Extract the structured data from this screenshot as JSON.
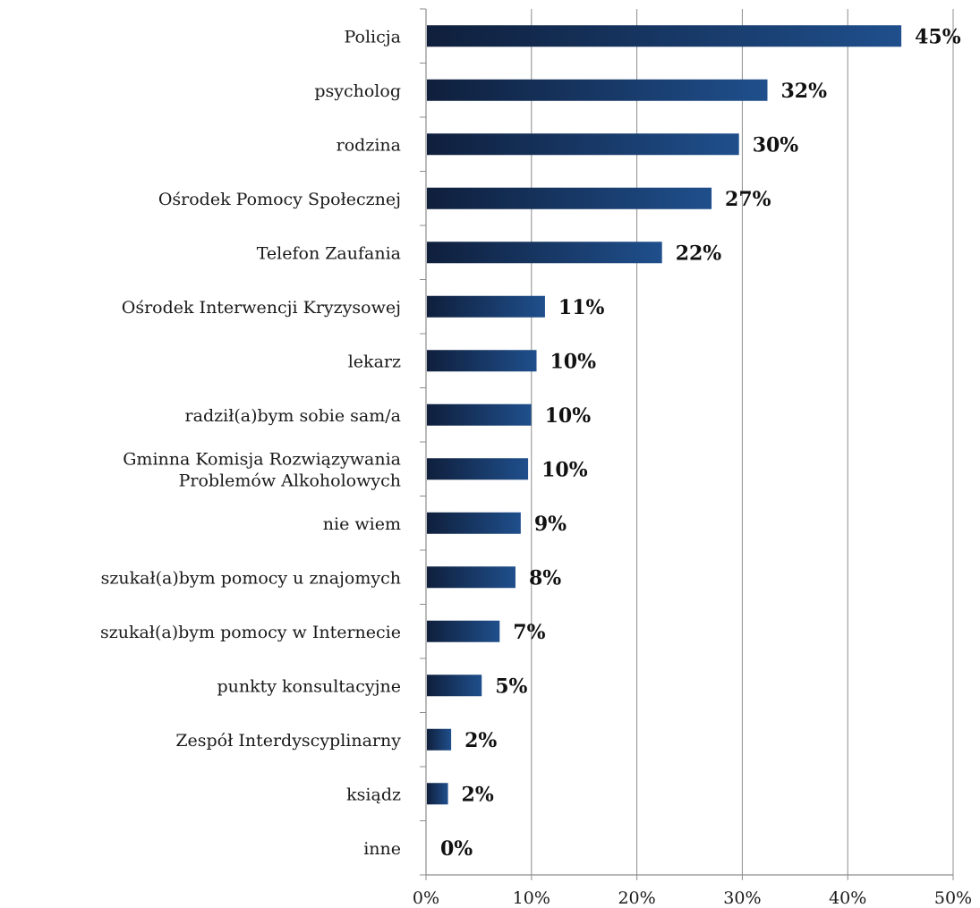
{
  "chart_data": {
    "type": "bar",
    "orientation": "horizontal",
    "categories": [
      "Policja",
      "psycholog",
      "rodzina",
      "Ośrodek Pomocy Społecznej",
      "Telefon Zaufania",
      "Ośrodek Interwencji Kryzysowej",
      "lekarz",
      "radził(a)bym sobie sam/a",
      "Gminna Komisja Rozwiązywania Problemów Alkoholowych",
      "nie wiem",
      "szukał(a)bym pomocy u znajomych",
      "szukał(a)bym pomocy w Internecie",
      "punkty konsultacyjne",
      "Zespół Interdyscyplinarny",
      "ksiądz",
      "inne"
    ],
    "category_lines": [
      [
        "Policja"
      ],
      [
        "psycholog"
      ],
      [
        "rodzina"
      ],
      [
        "Ośrodek Pomocy Społecznej"
      ],
      [
        "Telefon Zaufania"
      ],
      [
        "Ośrodek Interwencji Kryzysowej"
      ],
      [
        "lekarz"
      ],
      [
        "radził(a)bym sobie sam/a"
      ],
      [
        "Gminna Komisja Rozwiązywania",
        "Problemów Alkoholowych"
      ],
      [
        "nie wiem"
      ],
      [
        "szukał(a)bym pomocy u znajomych"
      ],
      [
        "szukał(a)bym pomocy w Internecie"
      ],
      [
        "punkty konsultacyjne"
      ],
      [
        "Zespół Interdyscyplinarny"
      ],
      [
        "ksiądz"
      ],
      [
        "inne"
      ]
    ],
    "values": [
      45,
      32.3,
      29.6,
      27,
      22.3,
      11.2,
      10.4,
      9.9,
      9.6,
      8.9,
      8.4,
      6.9,
      5.2,
      2.3,
      2.0,
      0
    ],
    "data_labels": [
      "45%",
      "32%",
      "30%",
      "27%",
      "22%",
      "11%",
      "10%",
      "10%",
      "10%",
      "9%",
      "8%",
      "7%",
      "5%",
      "2%",
      "2%",
      "0%"
    ],
    "xlim": [
      0,
      50
    ],
    "x_ticks": [
      0,
      10,
      20,
      30,
      40,
      50
    ],
    "x_tick_labels": [
      "0%",
      "10%",
      "20%",
      "30%",
      "40%",
      "50%"
    ],
    "grid": "vertical",
    "title": "",
    "xlabel": "",
    "ylabel": "",
    "colors": {
      "bar_dark": "#0f1f3c",
      "bar_light": "#1f4f8c",
      "grid": "#8c8c8c",
      "axis": "#8c8c8c"
    }
  }
}
